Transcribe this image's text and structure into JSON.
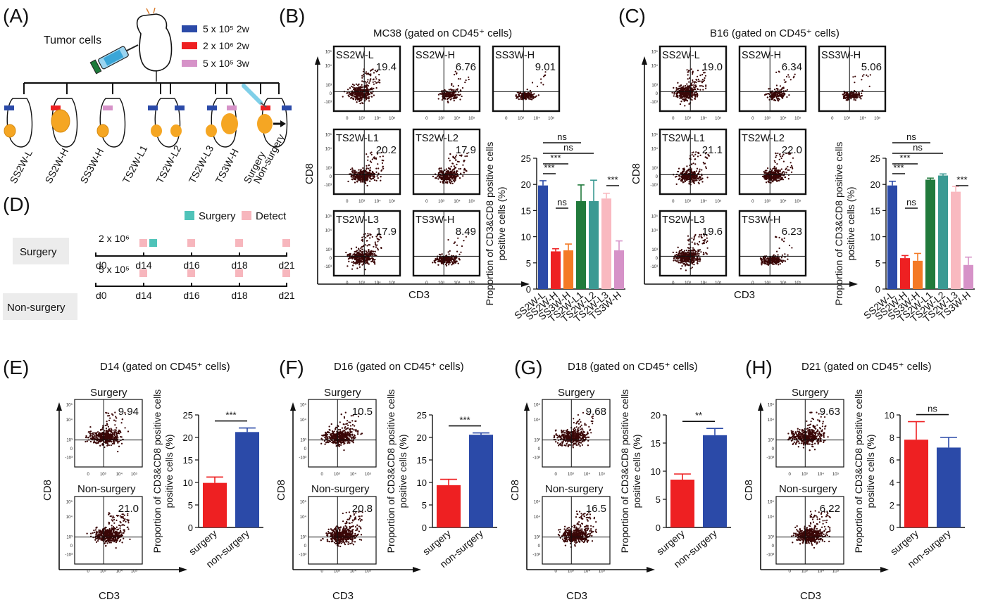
{
  "panel_labels": [
    "(A)",
    "(B)",
    "(C)",
    "(D)",
    "(E)",
    "(F)",
    "(G)",
    "(H)"
  ],
  "colors": {
    "blue": "#2b4aa8",
    "red": "#ee2022",
    "orange": "#f47a25",
    "green": "#217a3c",
    "teal": "#3b9a93",
    "pink": "#f9b9c0",
    "violet": "#d692c8",
    "dot": "#3a0707",
    "surgery_mark": "#4fc3b9",
    "detect_mark": "#f7b6bd"
  },
  "panel_a": {
    "tumor_label": "Tumor cells",
    "legend": [
      {
        "text": "5 x 10⁵ 2w",
        "color": "#2b4aa8"
      },
      {
        "text": "2 x 10⁶ 2w",
        "color": "#ee2022"
      },
      {
        "text": "5 x 10⁵ 3w",
        "color": "#d692c8"
      }
    ],
    "groups": [
      "SS2W-L",
      "SS2W-H",
      "SS3W-H",
      "TS2W-L1",
      "TS2W-L2",
      "TS2W-L3",
      "TS3W-H",
      "Surgery",
      "Non-surgery"
    ]
  },
  "panel_b": {
    "title": "MC38 (gated on CD45⁺ cells)",
    "x_axis": "CD3",
    "y_axis": "CD8",
    "facs": [
      {
        "name": "SS2W-L",
        "value": "19.4"
      },
      {
        "name": "SS2W-H",
        "value": "6.76"
      },
      {
        "name": "SS3W-H",
        "value": "9.01"
      },
      {
        "name": "TS2W-L1",
        "value": "20.2"
      },
      {
        "name": "TS2W-L2",
        "value": "17.9"
      },
      {
        "name": "TS2W-L3",
        "value": "17.9"
      },
      {
        "name": "TS3W-H",
        "value": "8.49"
      }
    ]
  },
  "panel_c": {
    "title": "B16 (gated on CD45⁺ cells)",
    "x_axis": "CD3",
    "y_axis": "CD8",
    "facs": [
      {
        "name": "SS2W-L",
        "value": "19.0"
      },
      {
        "name": "SS2W-H",
        "value": "6.34"
      },
      {
        "name": "SS3W-H",
        "value": "5.06"
      },
      {
        "name": "TS2W-L1",
        "value": "21.1"
      },
      {
        "name": "TS2W-L2",
        "value": "22.0"
      },
      {
        "name": "TS2W-L3",
        "value": "19.6"
      },
      {
        "name": "TS3W-H",
        "value": "6.23"
      }
    ]
  },
  "panel_d": {
    "legend_surgery": "Surgery",
    "legend_detect": "Detect",
    "rows": [
      {
        "label": "Surgery",
        "dose": "2 x 10⁶",
        "days": [
          "d0",
          "d14",
          "d16",
          "d18",
          "d21"
        ]
      },
      {
        "label": "Non-surgery",
        "dose": "5 x 10⁵",
        "days": [
          "d0",
          "d14",
          "d16",
          "d18",
          "d21"
        ]
      }
    ]
  },
  "small_panels": [
    {
      "title": "D14  (gated on CD45⁺ cells)",
      "surgery_value": "9.94",
      "nonsurgery_value": "21.0"
    },
    {
      "title": "D16  (gated on CD45⁺ cells)",
      "surgery_value": "10.5",
      "nonsurgery_value": "20.8"
    },
    {
      "title": "D18  (gated on CD45⁺ cells)",
      "surgery_value": "9.68",
      "nonsurgery_value": "16.5"
    },
    {
      "title": "D21  (gated on CD45⁺ cells)",
      "surgery_value": "9.63",
      "nonsurgery_value": "6.22"
    }
  ],
  "facs_labels": {
    "surgery": "Surgery",
    "nonsurgery": "Non-surgery",
    "x_axis": "CD3",
    "y_axis": "CD8"
  },
  "tick_labels": {
    "y": [
      "10⁵",
      "10⁴",
      "10³",
      "0",
      "-10³"
    ],
    "x": [
      "0",
      "10³",
      "10⁴",
      "10⁵"
    ]
  },
  "chart_data": [
    {
      "type": "bar",
      "panel": "B",
      "ylabel": "Proportion of CD3&CD8 positive cells  (%)",
      "categories": [
        "SS2W-L",
        "SS2W-H",
        "SS3W-H",
        "TS2W-L1",
        "TS2W-L2",
        "TS2W-L3",
        "TS3W-H"
      ],
      "values": [
        19.8,
        7.2,
        7.4,
        16.8,
        16.8,
        17.3,
        7.4
      ],
      "errors": [
        0.9,
        0.5,
        1.2,
        3.1,
        4.0,
        1.0,
        1.8
      ],
      "colors": [
        "#2b4aa8",
        "#ee2022",
        "#f47a25",
        "#217a3c",
        "#3b9a93",
        "#f9b9c0",
        "#d692c8"
      ],
      "ylim": [
        0,
        25
      ],
      "yticks": [
        0,
        5,
        10,
        15,
        20,
        25
      ],
      "significance": [
        {
          "from": 0,
          "to": 1,
          "label": "***"
        },
        {
          "from": 0,
          "to": 2,
          "label": "***"
        },
        {
          "from": 0,
          "to": 3,
          "label": "ns"
        },
        {
          "from": 0,
          "to": 4,
          "label": "ns"
        },
        {
          "from": 1,
          "to": 2,
          "label": "ns"
        },
        {
          "from": 5,
          "to": 6,
          "label": "***"
        }
      ]
    },
    {
      "type": "bar",
      "panel": "C",
      "ylabel": "Proportion of CD3&CD8 positive cells  (%)",
      "categories": [
        "SS2W-L",
        "SS2W-H",
        "SS3W-H",
        "TS2W-L1",
        "TS2W-L2",
        "TS2W-L3",
        "TS3W-H"
      ],
      "values": [
        19.8,
        5.9,
        5.4,
        20.9,
        21.7,
        18.6,
        4.6
      ],
      "errors": [
        0.8,
        0.5,
        1.4,
        0.3,
        0.3,
        1.0,
        1.5
      ],
      "colors": [
        "#2b4aa8",
        "#ee2022",
        "#f47a25",
        "#217a3c",
        "#3b9a93",
        "#f9b9c0",
        "#d692c8"
      ],
      "ylim": [
        0,
        25
      ],
      "yticks": [
        0,
        5,
        10,
        15,
        20,
        25
      ],
      "significance": [
        {
          "from": 0,
          "to": 1,
          "label": "***"
        },
        {
          "from": 0,
          "to": 2,
          "label": "***"
        },
        {
          "from": 0,
          "to": 3,
          "label": "ns"
        },
        {
          "from": 0,
          "to": 4,
          "label": "ns"
        },
        {
          "from": 1,
          "to": 2,
          "label": "ns"
        },
        {
          "from": 5,
          "to": 6,
          "label": "***"
        }
      ]
    },
    {
      "type": "bar",
      "panel": "E",
      "ylabel": "Proportion of CD3&CD8 positive cells  (%)",
      "categories": [
        "surgery",
        "non-surgery"
      ],
      "values": [
        9.9,
        21.2
      ],
      "errors": [
        1.3,
        0.9
      ],
      "colors": [
        "#ee2022",
        "#2b4aa8"
      ],
      "ylim": [
        0,
        25
      ],
      "yticks": [
        0,
        5,
        10,
        15,
        20,
        25
      ],
      "significance": [
        {
          "from": 0,
          "to": 1,
          "label": "***"
        }
      ]
    },
    {
      "type": "bar",
      "panel": "F",
      "ylabel": "Proportion of CD3&CD8 positive cells  (%)",
      "categories": [
        "surgery",
        "non-surgery"
      ],
      "values": [
        9.4,
        20.6
      ],
      "errors": [
        1.3,
        0.4
      ],
      "colors": [
        "#ee2022",
        "#2b4aa8"
      ],
      "ylim": [
        0,
        25
      ],
      "yticks": [
        0,
        5,
        10,
        15,
        20,
        25
      ],
      "significance": [
        {
          "from": 0,
          "to": 1,
          "label": "***"
        }
      ]
    },
    {
      "type": "bar",
      "panel": "G",
      "ylabel": "Proportion of CD3&CD8 positive cells  (%)",
      "categories": [
        "surgery",
        "non-surgery"
      ],
      "values": [
        8.5,
        16.4
      ],
      "errors": [
        1.0,
        1.2
      ],
      "colors": [
        "#ee2022",
        "#2b4aa8"
      ],
      "ylim": [
        0,
        20
      ],
      "yticks": [
        0,
        5,
        10,
        15,
        20
      ],
      "significance": [
        {
          "from": 0,
          "to": 1,
          "label": "**"
        }
      ]
    },
    {
      "type": "bar",
      "panel": "H",
      "ylabel": "Proportion of CD3&CD8 positive cells  (%)",
      "categories": [
        "surgery",
        "non-surgery"
      ],
      "values": [
        7.8,
        7.1
      ],
      "errors": [
        1.6,
        0.9
      ],
      "colors": [
        "#ee2022",
        "#2b4aa8"
      ],
      "ylim": [
        0,
        10
      ],
      "yticks": [
        0,
        2,
        4,
        6,
        8,
        10
      ],
      "significance": [
        {
          "from": 0,
          "to": 1,
          "label": "ns"
        }
      ]
    }
  ]
}
